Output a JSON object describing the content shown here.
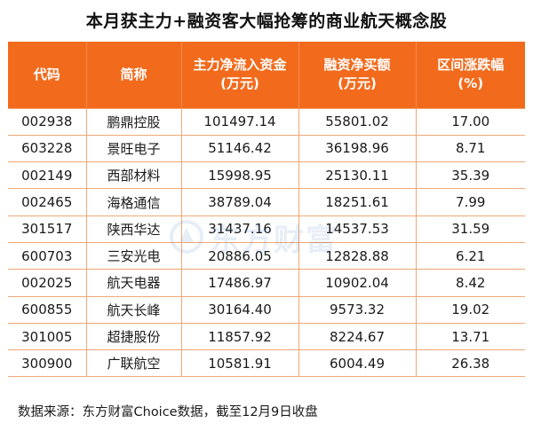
{
  "title": "本月获主力+融资客大幅抢筹的商业航天概念股",
  "table": {
    "headers": [
      [
        "代码"
      ],
      [
        "简称"
      ],
      [
        "主力净流入资金",
        "(万元)"
      ],
      [
        "融资净买额",
        "(万元)"
      ],
      [
        "区间涨跌幅",
        "(%)"
      ]
    ],
    "rows": [
      [
        "002938",
        "鹏鼎控股",
        "101497.14",
        "55801.02",
        "17.00"
      ],
      [
        "603228",
        "景旺电子",
        "51146.42",
        "36198.96",
        "8.71"
      ],
      [
        "002149",
        "西部材料",
        "15998.95",
        "25130.11",
        "35.39"
      ],
      [
        "002465",
        "海格通信",
        "38789.04",
        "18251.61",
        "7.99"
      ],
      [
        "301517",
        "陕西华达",
        "31437.16",
        "14537.53",
        "31.59"
      ],
      [
        "600703",
        "三安光电",
        "20886.05",
        "12828.88",
        "6.21"
      ],
      [
        "002025",
        "航天电器",
        "17486.97",
        "10902.04",
        "8.42"
      ],
      [
        "600855",
        "航天长峰",
        "30164.40",
        "9573.32",
        "19.02"
      ],
      [
        "301005",
        "超捷股份",
        "11857.92",
        "8224.67",
        "13.71"
      ],
      [
        "300900",
        "广联航空",
        "10581.91",
        "6004.49",
        "26.38"
      ]
    ]
  },
  "watermark": {
    "text": "东方财富",
    "icon": "eastmoney-logo-icon",
    "color": "#1a5fb4"
  },
  "source": "数据来源：东方财富Choice数据，截至12月9日收盘",
  "colors": {
    "header_bg": "#f26b1d",
    "header_text": "#ffffff",
    "grid_line": "#f0a878"
  }
}
